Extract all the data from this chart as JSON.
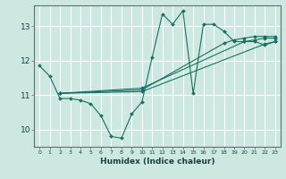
{
  "xlabel": "Humidex (Indice chaleur)",
  "bg_color": "#cce8e0",
  "line_color": "#1a7060",
  "grid_color": "#ffffff",
  "xlim": [
    -0.5,
    23.5
  ],
  "ylim": [
    9.5,
    13.6
  ],
  "yticks": [
    10,
    11,
    12,
    13
  ],
  "xticks": [
    0,
    1,
    2,
    3,
    4,
    5,
    6,
    7,
    8,
    9,
    10,
    11,
    12,
    13,
    14,
    15,
    16,
    17,
    18,
    19,
    20,
    21,
    22,
    23
  ],
  "series1_x": [
    0,
    1,
    2,
    3,
    4,
    5,
    6,
    7,
    8,
    9,
    10,
    11,
    12,
    13,
    14,
    15,
    16,
    17,
    18,
    19,
    20,
    21,
    22,
    23
  ],
  "series1_y": [
    11.85,
    11.55,
    10.9,
    10.9,
    10.85,
    10.75,
    10.4,
    9.8,
    9.75,
    10.45,
    10.8,
    12.1,
    13.35,
    13.05,
    13.45,
    11.05,
    13.05,
    13.05,
    12.85,
    12.55,
    12.55,
    12.55,
    12.45,
    12.55
  ],
  "series2_x": [
    2,
    10,
    22,
    23
  ],
  "series2_y": [
    11.05,
    11.1,
    12.48,
    12.55
  ],
  "series3_x": [
    2,
    10,
    20,
    21,
    22,
    23
  ],
  "series3_y": [
    11.05,
    11.2,
    12.55,
    12.6,
    12.65,
    12.65
  ],
  "series4_x": [
    2,
    10,
    18,
    19,
    20,
    21,
    22,
    23
  ],
  "series4_y": [
    11.05,
    11.15,
    12.5,
    12.6,
    12.65,
    12.7,
    12.7,
    12.7
  ]
}
